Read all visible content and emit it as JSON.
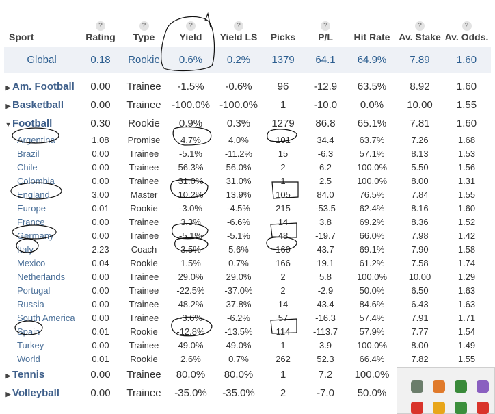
{
  "headers": [
    {
      "label": "Sport",
      "help": false
    },
    {
      "label": "Rating",
      "help": true
    },
    {
      "label": "Type",
      "help": true
    },
    {
      "label": "Yield",
      "help": true
    },
    {
      "label": "Yield LS",
      "help": true
    },
    {
      "label": "Picks",
      "help": false
    },
    {
      "label": "P/L",
      "help": true
    },
    {
      "label": "Hit Rate",
      "help": false
    },
    {
      "label": "Av. Stake",
      "help": true
    },
    {
      "label": "Av. Odds.",
      "help": true
    }
  ],
  "help_glyph": "?",
  "expand_glyphs": {
    "collapsed": "▶",
    "expanded": "▼"
  },
  "rows": [
    {
      "kind": "global",
      "cells": [
        "Global",
        "0.18",
        "Rookie",
        "0.6%",
        "0.2%",
        "1379",
        "64.1",
        "64.9%",
        "7.89",
        "1.60"
      ]
    },
    {
      "kind": "gap"
    },
    {
      "kind": "sport",
      "arrow": "collapsed",
      "cells": [
        "Am. Football",
        "0.00",
        "Trainee",
        "-1.5%",
        "-0.6%",
        "96",
        "-12.9",
        "63.5%",
        "8.92",
        "1.60"
      ]
    },
    {
      "kind": "sport",
      "arrow": "collapsed",
      "cells": [
        "Basketball",
        "0.00",
        "Trainee",
        "-100.0%",
        "-100.0%",
        "1",
        "-10.0",
        "0.0%",
        "10.00",
        "1.55"
      ]
    },
    {
      "kind": "sport",
      "arrow": "expanded",
      "cells": [
        "Football",
        "0.30",
        "Rookie",
        "0.9%",
        "0.3%",
        "1279",
        "86.8",
        "65.1%",
        "7.81",
        "1.60"
      ]
    },
    {
      "kind": "country",
      "cells": [
        "Argentina",
        "1.08",
        "Promise",
        "4.7%",
        "4.0%",
        "101",
        "34.4",
        "63.7%",
        "7.26",
        "1.68"
      ]
    },
    {
      "kind": "country",
      "cells": [
        "Brazil",
        "0.00",
        "Trainee",
        "-5.1%",
        "-11.2%",
        "15",
        "-6.3",
        "57.1%",
        "8.13",
        "1.53"
      ]
    },
    {
      "kind": "country",
      "cells": [
        "Chile",
        "0.00",
        "Trainee",
        "56.3%",
        "56.0%",
        "2",
        "6.2",
        "100.0%",
        "5.50",
        "1.56"
      ]
    },
    {
      "kind": "country",
      "cells": [
        "Colombia",
        "0.00",
        "Trainee",
        "31.0%",
        "31.0%",
        "1",
        "2.5",
        "100.0%",
        "8.00",
        "1.31"
      ]
    },
    {
      "kind": "country",
      "cells": [
        "England",
        "3.00",
        "Master",
        "10.2%",
        "13.9%",
        "105",
        "84.0",
        "76.5%",
        "7.84",
        "1.55"
      ]
    },
    {
      "kind": "country",
      "cells": [
        "Europe",
        "0.01",
        "Rookie",
        "-3.0%",
        "-4.5%",
        "215",
        "-53.5",
        "62.4%",
        "8.16",
        "1.60"
      ]
    },
    {
      "kind": "country",
      "cells": [
        "France",
        "0.00",
        "Trainee",
        "3.3%",
        "-6.6%",
        "14",
        "3.8",
        "69.2%",
        "8.36",
        "1.52"
      ]
    },
    {
      "kind": "country",
      "cells": [
        "Germany",
        "0.00",
        "Trainee",
        "-5.1%",
        "-5.1%",
        "48",
        "-19.7",
        "66.0%",
        "7.98",
        "1.42"
      ]
    },
    {
      "kind": "country",
      "cells": [
        "Italy",
        "2.23",
        "Coach",
        "3.5%",
        "5.6%",
        "160",
        "43.7",
        "69.1%",
        "7.90",
        "1.58"
      ]
    },
    {
      "kind": "country",
      "cells": [
        "Mexico",
        "0.04",
        "Rookie",
        "1.5%",
        "0.7%",
        "166",
        "19.1",
        "61.2%",
        "7.58",
        "1.74"
      ]
    },
    {
      "kind": "country",
      "cells": [
        "Netherlands",
        "0.00",
        "Trainee",
        "29.0%",
        "29.0%",
        "2",
        "5.8",
        "100.0%",
        "10.00",
        "1.29"
      ]
    },
    {
      "kind": "country",
      "cells": [
        "Portugal",
        "0.00",
        "Trainee",
        "-22.5%",
        "-37.0%",
        "2",
        "-2.9",
        "50.0%",
        "6.50",
        "1.63"
      ]
    },
    {
      "kind": "country",
      "cells": [
        "Russia",
        "0.00",
        "Trainee",
        "48.2%",
        "37.8%",
        "14",
        "43.4",
        "84.6%",
        "6.43",
        "1.63"
      ]
    },
    {
      "kind": "country",
      "cells": [
        "South America",
        "0.00",
        "Trainee",
        "-3.6%",
        "-6.2%",
        "57",
        "-16.3",
        "57.4%",
        "7.91",
        "1.71"
      ]
    },
    {
      "kind": "country",
      "cells": [
        "Spain",
        "0.01",
        "Rookie",
        "-12.8%",
        "-13.5%",
        "114",
        "-113.7",
        "57.9%",
        "7.77",
        "1.54"
      ]
    },
    {
      "kind": "country",
      "cells": [
        "Turkey",
        "0.00",
        "Trainee",
        "49.0%",
        "49.0%",
        "1",
        "3.9",
        "100.0%",
        "8.00",
        "1.49"
      ]
    },
    {
      "kind": "country",
      "cells": [
        "World",
        "0.01",
        "Rookie",
        "2.6%",
        "0.7%",
        "262",
        "52.3",
        "66.4%",
        "7.82",
        "1.55"
      ]
    },
    {
      "kind": "sport",
      "arrow": "collapsed",
      "cells": [
        "Tennis",
        "0.00",
        "Trainee",
        "80.0%",
        "80.0%",
        "1",
        "7.2",
        "100.0%",
        "",
        ""
      ]
    },
    {
      "kind": "sport",
      "arrow": "collapsed",
      "cells": [
        "Volleyball",
        "0.00",
        "Trainee",
        "-35.0%",
        "-35.0%",
        "2",
        "-7.0",
        "50.0%",
        "",
        ""
      ]
    }
  ],
  "tray_icons": [
    {
      "name": "usb-drive-icon",
      "color": "#6b7d6b"
    },
    {
      "name": "cloud-icon",
      "color": "#e07a2b"
    },
    {
      "name": "security-shield-icon",
      "color": "#3a8a3a"
    },
    {
      "name": "pen-icon",
      "color": "#8a5fc0"
    },
    {
      "name": "opera-icon",
      "color": "#d9342b"
    },
    {
      "name": "media-player-icon",
      "color": "#e8a61a"
    },
    {
      "name": "chrome-icon",
      "color": "#3c8f3c"
    },
    {
      "name": "yandex-icon",
      "color": "#d9342b"
    }
  ],
  "colors": {
    "link": "#4a6f98",
    "global_bg": "#eef1f6",
    "annotation": "#111111"
  }
}
